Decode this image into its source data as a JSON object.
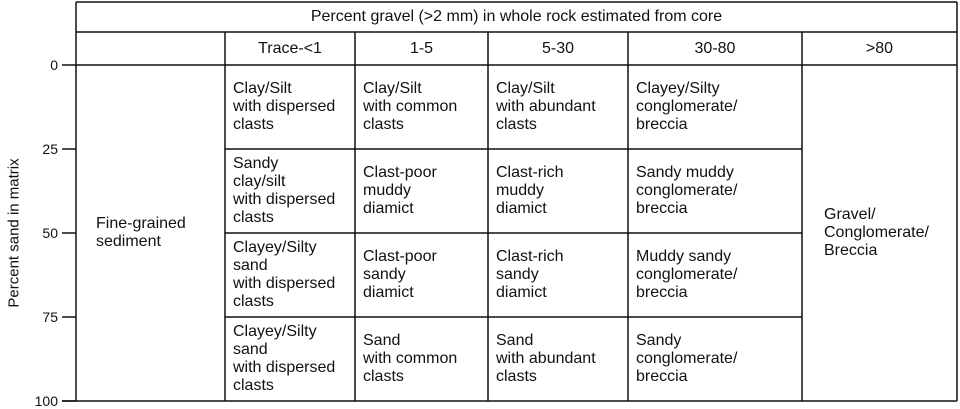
{
  "header": {
    "title": "Percent gravel (>2 mm) in whole rock estimated from core",
    "columns": [
      "Trace-<1",
      "1-5",
      "5-30",
      "30-80",
      ">80"
    ]
  },
  "axis": {
    "label": "Percent sand in matrix",
    "ticks": [
      0,
      25,
      50,
      75,
      100
    ]
  },
  "table": {
    "left_label": [
      "Fine-grained",
      "sediment"
    ],
    "right_label": [
      "Gravel/",
      "Conglomerate/",
      "Breccia"
    ],
    "rows": [
      [
        [
          "Clay/Silt",
          "with dispersed",
          "clasts"
        ],
        [
          "Clay/Silt",
          "with common",
          "clasts"
        ],
        [
          "Clay/Silt",
          "with abundant",
          "clasts"
        ],
        [
          "Clayey/Silty",
          "conglomerate/",
          "breccia"
        ]
      ],
      [
        [
          "Sandy",
          "clay/silt",
          "with dispersed",
          "clasts"
        ],
        [
          "Clast-poor",
          "muddy",
          "diamict"
        ],
        [
          "Clast-rich",
          "muddy",
          "diamict"
        ],
        [
          "Sandy muddy",
          "conglomerate/",
          "breccia"
        ]
      ],
      [
        [
          "Clayey/Silty",
          "sand",
          "with dispersed",
          "clasts"
        ],
        [
          "Clast-poor",
          "sandy",
          "diamict"
        ],
        [
          "Clast-rich",
          "sandy",
          "diamict"
        ],
        [
          "Muddy sandy",
          "conglomerate/",
          "breccia"
        ]
      ],
      [
        [
          "Clayey/Silty",
          "sand",
          "with dispersed",
          "clasts"
        ],
        [
          "Sand",
          "with common",
          "clasts"
        ],
        [
          "Sand",
          "with abundant",
          "clasts"
        ],
        [
          "Sandy",
          "conglomerate/",
          "breccia"
        ]
      ]
    ]
  }
}
